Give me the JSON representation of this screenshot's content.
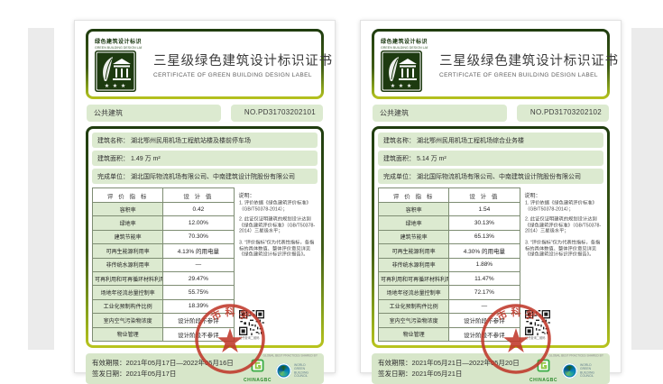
{
  "certificates": [
    {
      "logo": {
        "label_cn": "绿色建筑设计标识",
        "label_en": "GREEN BUILDING DESIGN LABEL",
        "stars": "★ ★ ★"
      },
      "title_cn": "三星级绿色建筑设计标识证书",
      "title_en": "CERTIFICATE OF GREEN BUILDING DESIGN LABEL",
      "category": "公共建筑",
      "number": "NO.PD31703202101",
      "fields": [
        {
          "label": "建筑名称：",
          "value": "湖北鄂州民用机场工程航站楼及楼前停车场"
        },
        {
          "label": "建筑面积：",
          "value": "1.49 万 m²"
        },
        {
          "label": "完成单位：",
          "value": "湖北国际物流机场有限公司、中南建筑设计院股份有限公司"
        }
      ],
      "table": {
        "headers": [
          "评 价 指 标",
          "设 计 值"
        ],
        "rows": [
          [
            "容积率",
            "0.42"
          ],
          [
            "绿地率",
            "12.00%"
          ],
          [
            "建筑节能率",
            "70.30%"
          ],
          [
            "可再生能源利用率",
            "4.13% 的用电量"
          ],
          [
            "非传统水源利用率",
            "—"
          ],
          [
            "可再利用和可再循环材料利用率",
            "29.47%"
          ],
          [
            "场地年径流总量控制率",
            "55.75%"
          ],
          [
            "工业化预制构件比例",
            "18.39%"
          ],
          [
            "室内空气污染物浓度",
            "设计阶段不参评"
          ],
          [
            "物业管理",
            "设计阶段不参评"
          ]
        ]
      },
      "notes": {
        "title": "说明：",
        "items": [
          "1. 评价依据《绿色建筑评价标准》（GB/T50378-2014）；",
          "2. 此证仅证明建筑的规划设计达到《绿色建筑评价标准》（GB/T50378-2014）三星级水平；",
          "3. “评价指标”仅为代表性指标，各指标的具体数值、整体评价意见详见《绿色建筑设计标识评价报告》。"
        ]
      },
      "qr_caption": "证书查询二维码",
      "validity_label": "有效期限：",
      "validity_value": "2021年05月17日—2022年05月16日",
      "issue_label": "签发日期：",
      "issue_value": "2021年05月17日",
      "seal_text": "市 科 学",
      "footer": {
        "shared_by": "GLOBAL BEST PRACTICES SHARED BY",
        "chinagbc": "CHINAGBC",
        "wgbc": "WORLD GREEN BUILDING COUNCIL"
      }
    },
    {
      "logo": {
        "label_cn": "绿色建筑设计标识",
        "label_en": "GREEN BUILDING DESIGN LABEL",
        "stars": "★ ★ ★"
      },
      "title_cn": "三星级绿色建筑设计标识证书",
      "title_en": "CERTIFICATE OF GREEN BUILDING DESIGN LABEL",
      "category": "公共建筑",
      "number": "NO.PD31703202102",
      "fields": [
        {
          "label": "建筑名称：",
          "value": "湖北鄂州民用机场工程机场综合业务楼"
        },
        {
          "label": "建筑面积：",
          "value": "5.14 万 m²"
        },
        {
          "label": "完成单位：",
          "value": "湖北国际物流机场有限公司、中南建筑设计院股份有限公司"
        }
      ],
      "table": {
        "headers": [
          "评 价 指 标",
          "设 计 值"
        ],
        "rows": [
          [
            "容积率",
            "1.54"
          ],
          [
            "绿地率",
            "30.13%"
          ],
          [
            "建筑节能率",
            "65.13%"
          ],
          [
            "可再生能源利用率",
            "4.30% 的用电量"
          ],
          [
            "非传统水源利用率",
            "1.88%"
          ],
          [
            "可再利用和可再循环材料利用率",
            "11.47%"
          ],
          [
            "场地年径流总量控制率",
            "72.17%"
          ],
          [
            "工业化预制构件比例",
            "—"
          ],
          [
            "室内空气污染物浓度",
            "设计阶段不参评"
          ],
          [
            "物业管理",
            "设计阶段不参评"
          ]
        ]
      },
      "notes": {
        "title": "说明：",
        "items": [
          "1. 评价依据《绿色建筑评价标准》（GB/T50378-2014）；",
          "2. 此证仅证明建筑的规划设计达到《绿色建筑评价标准》（GB/T50378-2014）三星级水平；",
          "3. “评价指标”仅为代表性指标，各指标的具体数值、整体评价意见详见《绿色建筑设计标识评价报告》。"
        ]
      },
      "qr_caption": "证书查询二维码",
      "validity_label": "有效期限：",
      "validity_value": "2021年05月21日—2022年05月20日",
      "issue_label": "签发日期：",
      "issue_value": "2021年05月21日",
      "seal_text": "市 科 学",
      "footer": {
        "shared_by": "GLOBAL BEST PRACTICES SHARED BY",
        "chinagbc": "CHINAGBC",
        "wgbc": "WORLD GREEN BUILDING COUNCIL"
      }
    }
  ]
}
